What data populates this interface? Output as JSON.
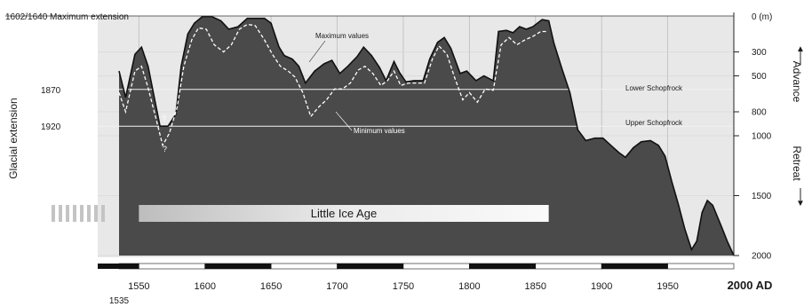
{
  "chart_data": {
    "type": "area",
    "title": "",
    "top_label": "1602/1640 Maximum extension",
    "xlabel": "",
    "left_ylabel": "Glacial extension",
    "right_unit_label": "0 (m)",
    "advance_label": "Advance",
    "retreat_label": "Retreat",
    "x_ticks": [
      "1550",
      "1600",
      "1650",
      "1700",
      "1750",
      "1800",
      "1850",
      "1900",
      "1950"
    ],
    "x_tick_values": [
      1550,
      1600,
      1650,
      1700,
      1750,
      1800,
      1850,
      1900,
      1950
    ],
    "x_first_label": "1535",
    "x_last_label": "2000 AD",
    "left_ticks": [
      "1870",
      "1920"
    ],
    "left_tick_values": [
      613,
      920
    ],
    "right_ticks": [
      "300",
      "500",
      "800",
      "1000",
      "1500",
      "2000"
    ],
    "right_tick_values": [
      300,
      500,
      800,
      1000,
      1500,
      2000
    ],
    "xlim": [
      1535,
      2000
    ],
    "ylim": [
      0,
      2000
    ],
    "y_reversed": true,
    "reference_lines": [
      {
        "name": "Lower Schopfrock",
        "value": 613
      },
      {
        "name": "Upper Schopfrock",
        "value": 920
      }
    ],
    "series": [
      {
        "name": "Maximum values",
        "points": [
          [
            1535,
            460
          ],
          [
            1540,
            680
          ],
          [
            1547,
            320
          ],
          [
            1552,
            260
          ],
          [
            1557,
            420
          ],
          [
            1562,
            700
          ],
          [
            1566,
            920
          ],
          [
            1572,
            920
          ],
          [
            1578,
            820
          ],
          [
            1582,
            420
          ],
          [
            1587,
            150
          ],
          [
            1592,
            60
          ],
          [
            1598,
            5
          ],
          [
            1605,
            5
          ],
          [
            1612,
            40
          ],
          [
            1618,
            110
          ],
          [
            1625,
            90
          ],
          [
            1632,
            20
          ],
          [
            1640,
            20
          ],
          [
            1645,
            20
          ],
          [
            1650,
            60
          ],
          [
            1656,
            260
          ],
          [
            1660,
            330
          ],
          [
            1666,
            360
          ],
          [
            1671,
            420
          ],
          [
            1676,
            560
          ],
          [
            1683,
            460
          ],
          [
            1690,
            400
          ],
          [
            1696,
            370
          ],
          [
            1702,
            480
          ],
          [
            1708,
            420
          ],
          [
            1715,
            340
          ],
          [
            1720,
            260
          ],
          [
            1726,
            330
          ],
          [
            1732,
            430
          ],
          [
            1737,
            540
          ],
          [
            1743,
            380
          ],
          [
            1747,
            470
          ],
          [
            1752,
            550
          ],
          [
            1758,
            540
          ],
          [
            1765,
            540
          ],
          [
            1770,
            360
          ],
          [
            1776,
            220
          ],
          [
            1781,
            180
          ],
          [
            1786,
            270
          ],
          [
            1793,
            480
          ],
          [
            1798,
            460
          ],
          [
            1805,
            540
          ],
          [
            1811,
            500
          ],
          [
            1818,
            540
          ],
          [
            1822,
            130
          ],
          [
            1828,
            120
          ],
          [
            1833,
            140
          ],
          [
            1838,
            90
          ],
          [
            1843,
            110
          ],
          [
            1848,
            90
          ],
          [
            1855,
            30
          ],
          [
            1860,
            40
          ],
          [
            1864,
            230
          ],
          [
            1870,
            440
          ],
          [
            1876,
            640
          ],
          [
            1882,
            950
          ],
          [
            1888,
            1040
          ],
          [
            1895,
            1020
          ],
          [
            1901,
            1020
          ],
          [
            1907,
            1080
          ],
          [
            1913,
            1140
          ],
          [
            1918,
            1180
          ],
          [
            1924,
            1100
          ],
          [
            1930,
            1050
          ],
          [
            1937,
            1040
          ],
          [
            1943,
            1080
          ],
          [
            1948,
            1170
          ],
          [
            1953,
            1380
          ],
          [
            1958,
            1570
          ],
          [
            1963,
            1780
          ],
          [
            1968,
            1950
          ],
          [
            1972,
            1880
          ],
          [
            1976,
            1640
          ],
          [
            1980,
            1540
          ],
          [
            1984,
            1580
          ],
          [
            1990,
            1740
          ],
          [
            1995,
            1880
          ],
          [
            2000,
            2000
          ]
        ]
      },
      {
        "name": "Minimum values",
        "points": [
          [
            1535,
            640
          ],
          [
            1540,
            800
          ],
          [
            1547,
            460
          ],
          [
            1552,
            420
          ],
          [
            1557,
            600
          ],
          [
            1563,
            860
          ],
          [
            1568,
            1080
          ],
          [
            1573,
            980
          ],
          [
            1579,
            760
          ],
          [
            1584,
            420
          ],
          [
            1590,
            200
          ],
          [
            1595,
            100
          ],
          [
            1601,
            110
          ],
          [
            1607,
            240
          ],
          [
            1614,
            300
          ],
          [
            1620,
            240
          ],
          [
            1626,
            110
          ],
          [
            1632,
            70
          ],
          [
            1638,
            80
          ],
          [
            1645,
            200
          ],
          [
            1651,
            320
          ],
          [
            1657,
            420
          ],
          [
            1663,
            460
          ],
          [
            1668,
            510
          ],
          [
            1674,
            640
          ],
          [
            1680,
            840
          ],
          [
            1686,
            760
          ],
          [
            1692,
            700
          ],
          [
            1698,
            610
          ],
          [
            1704,
            610
          ],
          [
            1710,
            560
          ],
          [
            1716,
            450
          ],
          [
            1721,
            420
          ],
          [
            1727,
            480
          ],
          [
            1733,
            580
          ],
          [
            1738,
            540
          ],
          [
            1743,
            460
          ],
          [
            1748,
            580
          ],
          [
            1754,
            560
          ],
          [
            1760,
            560
          ],
          [
            1766,
            560
          ],
          [
            1772,
            360
          ],
          [
            1777,
            250
          ],
          [
            1783,
            320
          ],
          [
            1789,
            520
          ],
          [
            1795,
            700
          ],
          [
            1800,
            640
          ],
          [
            1806,
            720
          ],
          [
            1812,
            610
          ],
          [
            1818,
            620
          ],
          [
            1824,
            240
          ],
          [
            1830,
            180
          ],
          [
            1836,
            240
          ],
          [
            1842,
            200
          ],
          [
            1848,
            170
          ],
          [
            1854,
            130
          ],
          [
            1859,
            130
          ]
        ]
      }
    ],
    "annotations": [
      "Maximum values",
      "Minimum values",
      "?",
      "?",
      "Little Ice Age",
      "Lower Schopfrock",
      "Upper Schopfrock"
    ],
    "period_bar": {
      "label": "Little Ice Age",
      "start": 1550,
      "end": 1860
    },
    "colors": {
      "fill": "#4a4a4a",
      "background": "#e6e6e6",
      "max_line": "#111111",
      "min_line": "#ffffff"
    }
  }
}
